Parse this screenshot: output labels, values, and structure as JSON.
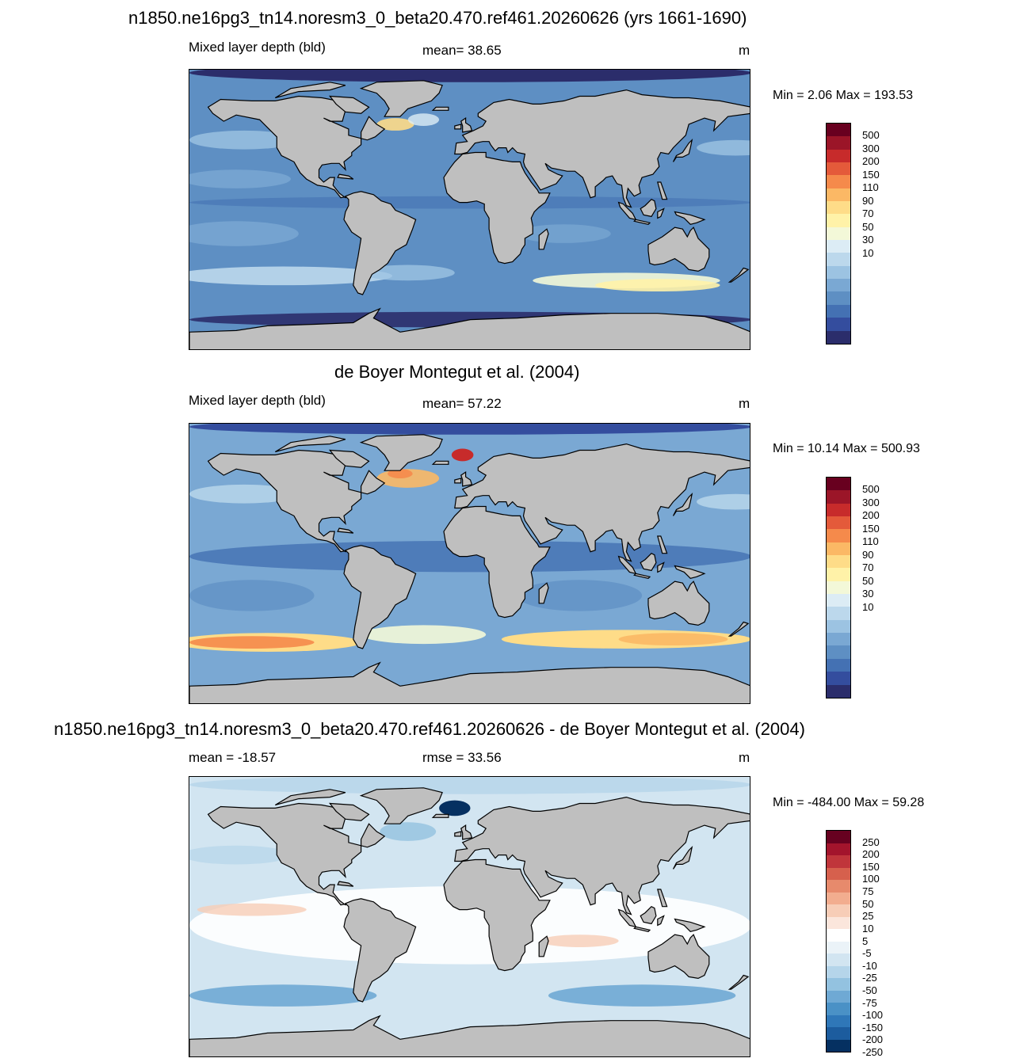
{
  "panels": [
    {
      "title": "n1850.ne16pg3_tn14.noresm3_0_beta20.470.ref461.20260626 (yrs 1661-1690)",
      "left_label": "Mixed layer depth (bld)",
      "center_label": "mean=  38.65",
      "unit": "m",
      "minmax": "Min =   2.06 Max = 193.53",
      "colorbar_labels": [
        "500",
        "300",
        "200",
        "150",
        "110",
        "90",
        "70",
        "50",
        "30",
        "10"
      ]
    },
    {
      "title": "de Boyer Montegut et al. (2004)",
      "left_label": "Mixed layer depth (bld)",
      "center_label": "mean=  57.22",
      "unit": "m",
      "minmax": "Min =  10.14 Max = 500.93",
      "colorbar_labels": [
        "500",
        "300",
        "200",
        "150",
        "110",
        "90",
        "70",
        "50",
        "30",
        "10"
      ]
    },
    {
      "title": "n1850.ne16pg3_tn14.noresm3_0_beta20.470.ref461.20260626 - de Boyer Montegut et al. (2004)",
      "left_label": "mean = -18.57",
      "center_label": "rmse =  33.56",
      "unit": "m",
      "minmax": "Min = -484.00 Max =  59.28",
      "colorbar_labels": [
        "250",
        "200",
        "150",
        "100",
        "75",
        "50",
        "25",
        "10",
        "5",
        "-5",
        "-10",
        "-25",
        "-50",
        "-75",
        "-100",
        "-150",
        "-200",
        "-250"
      ]
    }
  ],
  "colors": {
    "depth_scale": [
      "#2b2d6b",
      "#344d9e",
      "#4471b3",
      "#5e8fc3",
      "#7aa8d3",
      "#9cc3e2",
      "#bcd8ec",
      "#dcecf5",
      "#f3f8d8",
      "#fff2a8",
      "#fedc88",
      "#fbb865",
      "#f58a4b",
      "#e45a3a",
      "#c72b2b",
      "#9b1528",
      "#68001f"
    ],
    "diff_scale": [
      "#053061",
      "#1c5c9e",
      "#2f77b8",
      "#4a91c6",
      "#6fa9d4",
      "#93c2e0",
      "#b5d5ea",
      "#d2e5f1",
      "#ebf3f8",
      "#ffffff",
      "#fbe6dc",
      "#f7cdb7",
      "#f2ad8f",
      "#e78a6c",
      "#d6604d",
      "#c0353b",
      "#a3142c",
      "#670120"
    ],
    "land": "#bfbfbf"
  }
}
